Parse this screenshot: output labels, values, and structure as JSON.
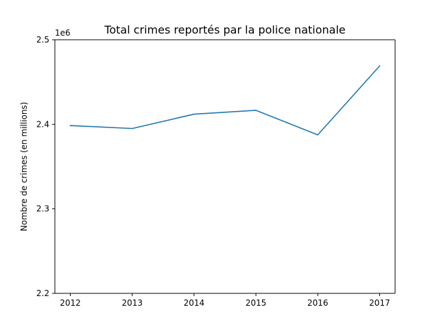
{
  "chart_data": {
    "type": "line",
    "title": "Total crimes reportés par la police nationale",
    "xlabel": "",
    "ylabel": "Nombre de crimes (en millions)",
    "offset_text": "1e6",
    "x": [
      2012,
      2013,
      2014,
      2015,
      2016,
      2017
    ],
    "x_tick_labels": [
      "2012",
      "2013",
      "2014",
      "2015",
      "2016",
      "2017"
    ],
    "y_ticks": [
      2.2,
      2.3,
      2.4,
      2.5
    ],
    "y_tick_labels": [
      "2.2",
      "2.3",
      "2.4",
      "2.5"
    ],
    "ylim": [
      2200000,
      2500000
    ],
    "series": [
      {
        "values": [
          2398500,
          2395000,
          2412000,
          2416500,
          2387500,
          2469000
        ],
        "color": "#1f77b4"
      }
    ],
    "grid": false,
    "legend": "none"
  }
}
